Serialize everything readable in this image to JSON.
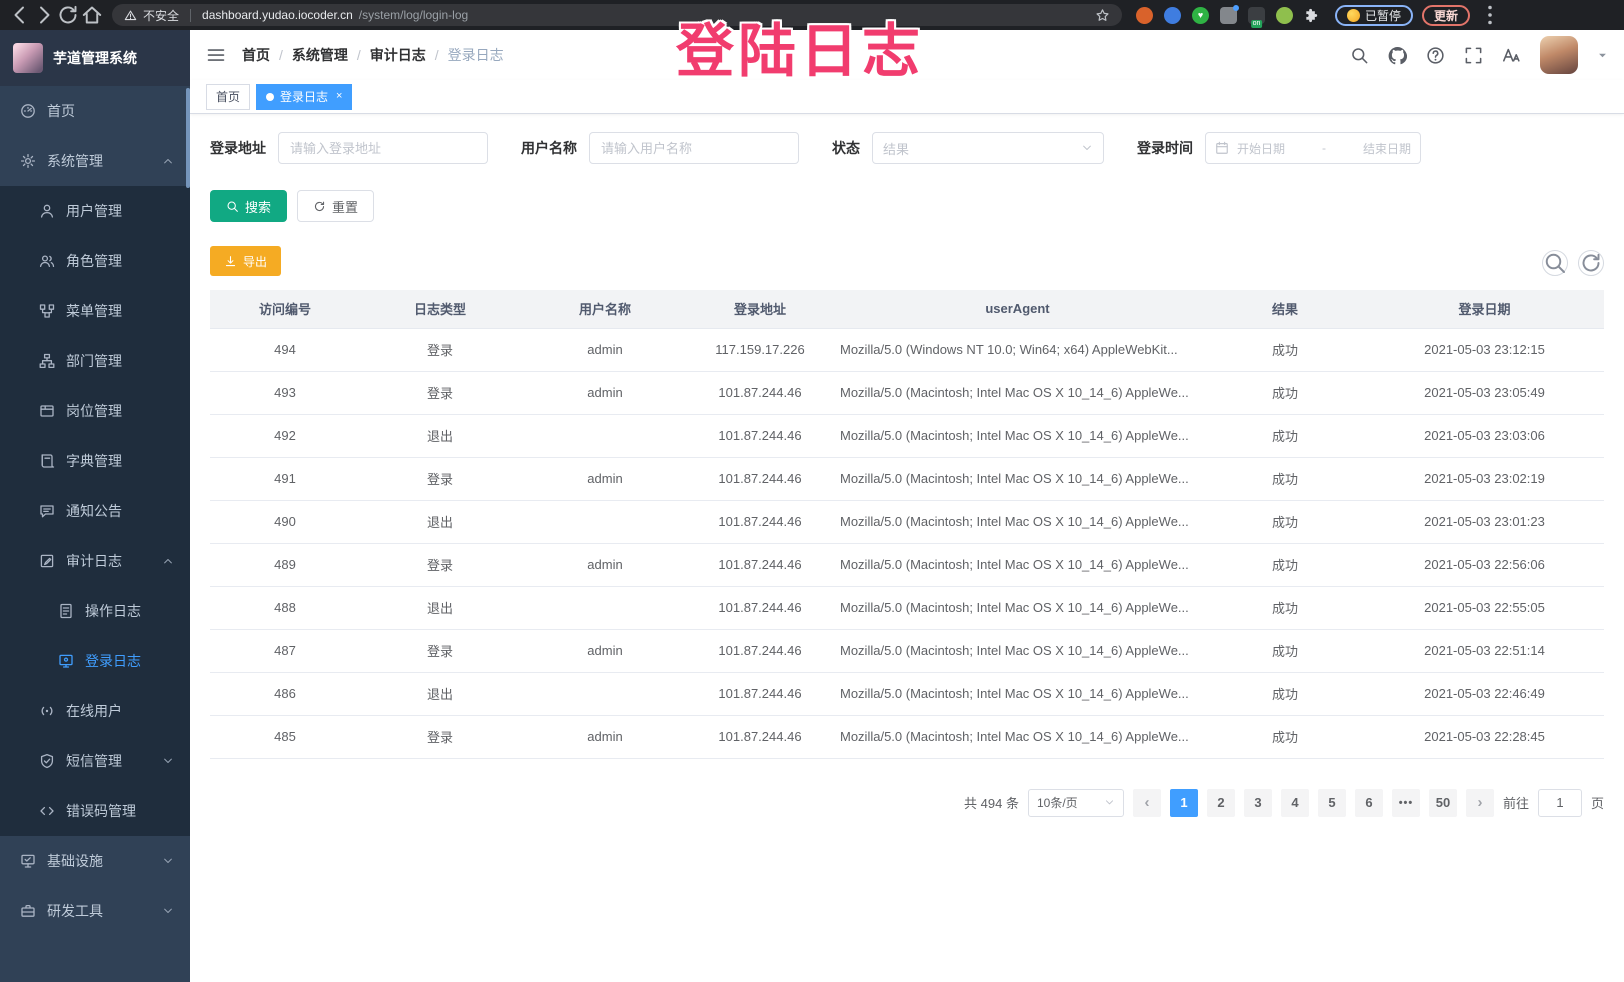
{
  "colors": {
    "primary": "#409eff",
    "search_button": "#11a983",
    "export_button": "#f5ab23",
    "sidebar_bg": "#304156",
    "submenu_bg": "#1f2d3d",
    "watermark": "#f13c6e"
  },
  "browser": {
    "security_label": "不安全",
    "url_host": "dashboard.yudao.iocoder.cn",
    "url_path": "/system/log/login-log",
    "paused_label": "已暂停",
    "update_label": "更新",
    "extensions": [
      {
        "name": "extension-orange-icon",
        "color": "#d9622b"
      },
      {
        "name": "extension-blue-diamond-icon",
        "color": "#3f7de0"
      },
      {
        "name": "extension-green-heart-icon",
        "color": "#2fb344",
        "glyph": "♥"
      },
      {
        "name": "extension-grid-icon",
        "color": "#83878c"
      },
      {
        "name": "extension-list-on-icon",
        "color": "#3b3e42",
        "badge": "on"
      },
      {
        "name": "extension-leaf-icon",
        "color": "#8fbf4d"
      },
      {
        "name": "extension-puzzle-icon",
        "color": "#dadce0"
      }
    ]
  },
  "watermark": {
    "text": "登陆日志"
  },
  "sidebar": {
    "logo_title": "芋道管理系统",
    "items": [
      {
        "label": "首页",
        "icon": "dashboard-icon",
        "level": 1
      },
      {
        "label": "系统管理",
        "icon": "gear-icon",
        "level": 1,
        "arrow": "up"
      },
      {
        "label": "用户管理",
        "icon": "user-icon",
        "level": 2,
        "sub": true
      },
      {
        "label": "角色管理",
        "icon": "peoples-icon",
        "level": 2,
        "sub": true
      },
      {
        "label": "菜单管理",
        "icon": "tree-table-icon",
        "level": 2,
        "sub": true
      },
      {
        "label": "部门管理",
        "icon": "tree-icon",
        "level": 2,
        "sub": true
      },
      {
        "label": "岗位管理",
        "icon": "post-icon",
        "level": 2,
        "sub": true
      },
      {
        "label": "字典管理",
        "icon": "dict-icon",
        "level": 2,
        "sub": true
      },
      {
        "label": "通知公告",
        "icon": "message-icon",
        "level": 2,
        "sub": true
      },
      {
        "label": "审计日志",
        "icon": "log-icon",
        "level": 2,
        "sub": true,
        "arrow": "up"
      },
      {
        "label": "操作日志",
        "icon": "form-icon",
        "level": 3,
        "sub": true
      },
      {
        "label": "登录日志",
        "icon": "logininfor-icon",
        "level": 3,
        "sub": true,
        "active": true
      },
      {
        "label": "在线用户",
        "icon": "online-icon",
        "level": 2,
        "sub": true
      },
      {
        "label": "短信管理",
        "icon": "sms-icon",
        "level": 2,
        "sub": true,
        "arrow": "down"
      },
      {
        "label": "错误码管理",
        "icon": "code-icon",
        "level": 2,
        "sub": true
      },
      {
        "label": "基础设施",
        "icon": "infra-icon",
        "level": 1,
        "arrow": "down"
      },
      {
        "label": "研发工具",
        "icon": "tool-icon",
        "level": 1,
        "arrow": "down"
      }
    ]
  },
  "breadcrumb": [
    "首页",
    "系统管理",
    "审计日志",
    "登录日志"
  ],
  "tags": [
    {
      "label": "首页",
      "active": false
    },
    {
      "label": "登录日志",
      "active": true,
      "closable": true
    }
  ],
  "filters": {
    "address_label": "登录地址",
    "address_placeholder": "请输入登录地址",
    "username_label": "用户名称",
    "username_placeholder": "请输入用户名称",
    "status_label": "状态",
    "status_placeholder": "结果",
    "time_label": "登录时间",
    "start_placeholder": "开始日期",
    "range_separator": "-",
    "end_placeholder": "结束日期",
    "search_label": "搜索",
    "reset_label": "重置"
  },
  "toolbar": {
    "export_label": "导出"
  },
  "table": {
    "headers": [
      "访问编号",
      "日志类型",
      "用户名称",
      "登录地址",
      "userAgent",
      "结果",
      "登录日期"
    ],
    "field_names": [
      "id",
      "type",
      "username",
      "ip",
      "user_agent",
      "result",
      "date"
    ],
    "rows": [
      [
        "494",
        "登录",
        "admin",
        "117.159.17.226",
        "Mozilla/5.0 (Windows NT 10.0; Win64; x64) AppleWebKit...",
        "成功",
        "2021-05-03 23:12:15"
      ],
      [
        "493",
        "登录",
        "admin",
        "101.87.244.46",
        "Mozilla/5.0 (Macintosh; Intel Mac OS X 10_14_6) AppleWe...",
        "成功",
        "2021-05-03 23:05:49"
      ],
      [
        "492",
        "退出",
        "",
        "101.87.244.46",
        "Mozilla/5.0 (Macintosh; Intel Mac OS X 10_14_6) AppleWe...",
        "成功",
        "2021-05-03 23:03:06"
      ],
      [
        "491",
        "登录",
        "admin",
        "101.87.244.46",
        "Mozilla/5.0 (Macintosh; Intel Mac OS X 10_14_6) AppleWe...",
        "成功",
        "2021-05-03 23:02:19"
      ],
      [
        "490",
        "退出",
        "",
        "101.87.244.46",
        "Mozilla/5.0 (Macintosh; Intel Mac OS X 10_14_6) AppleWe...",
        "成功",
        "2021-05-03 23:01:23"
      ],
      [
        "489",
        "登录",
        "admin",
        "101.87.244.46",
        "Mozilla/5.0 (Macintosh; Intel Mac OS X 10_14_6) AppleWe...",
        "成功",
        "2021-05-03 22:56:06"
      ],
      [
        "488",
        "退出",
        "",
        "101.87.244.46",
        "Mozilla/5.0 (Macintosh; Intel Mac OS X 10_14_6) AppleWe...",
        "成功",
        "2021-05-03 22:55:05"
      ],
      [
        "487",
        "登录",
        "admin",
        "101.87.244.46",
        "Mozilla/5.0 (Macintosh; Intel Mac OS X 10_14_6) AppleWe...",
        "成功",
        "2021-05-03 22:51:14"
      ],
      [
        "486",
        "退出",
        "",
        "101.87.244.46",
        "Mozilla/5.0 (Macintosh; Intel Mac OS X 10_14_6) AppleWe...",
        "成功",
        "2021-05-03 22:46:49"
      ],
      [
        "485",
        "登录",
        "admin",
        "101.87.244.46",
        "Mozilla/5.0 (Macintosh; Intel Mac OS X 10_14_6) AppleWe...",
        "成功",
        "2021-05-03 22:28:45"
      ]
    ]
  },
  "pagination": {
    "total_text": "共 494 条",
    "page_size": "10条/页",
    "pages": [
      "1",
      "2",
      "3",
      "4",
      "5",
      "6",
      "•••",
      "50"
    ],
    "active_page": "1",
    "goto_label": "前往",
    "goto_value": "1",
    "page_unit": "页"
  }
}
